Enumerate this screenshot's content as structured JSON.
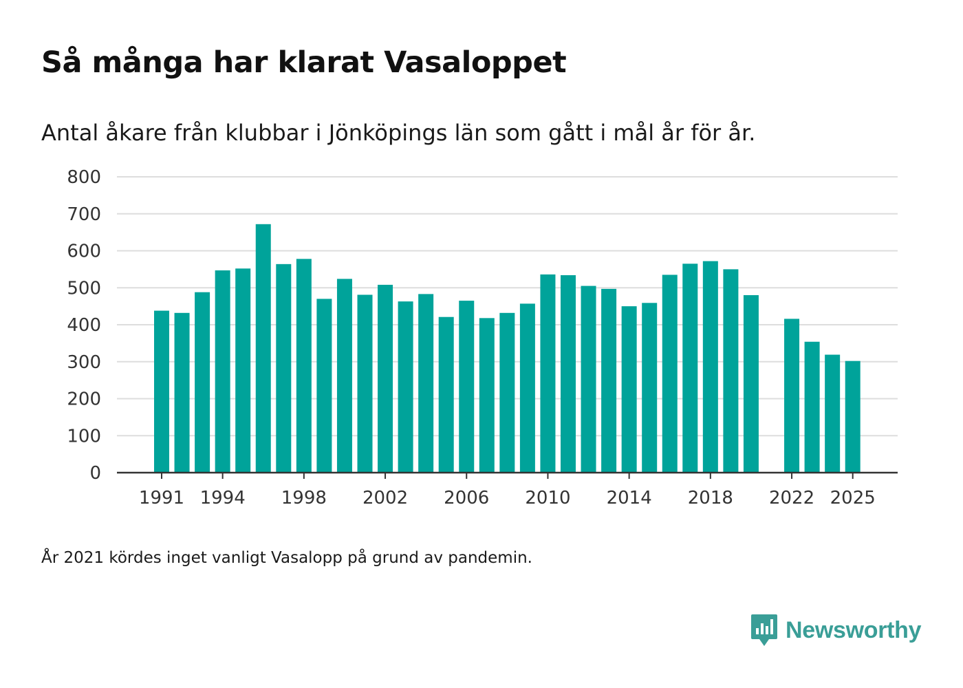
{
  "title": "Så många har klarat Vasaloppet",
  "subtitle": "Antal åkare från klubbar i Jönköpings län som gått i mål år för år.",
  "note": "År 2021 kördes inget vanligt Vasalopp på grund av pandemin.",
  "brand": {
    "name": "Newsworthy",
    "color": "#3a9e97",
    "icon": "newsworthy-logo-icon"
  },
  "colors": {
    "bar": "#00a39a",
    "grid": "#dddddd",
    "axis": "#333333"
  },
  "chart_data": {
    "type": "bar",
    "title": "Så många har klarat Vasaloppet",
    "xlabel": "",
    "ylabel": "",
    "ylim": [
      0,
      800
    ],
    "yticks": [
      0,
      100,
      200,
      300,
      400,
      500,
      600,
      700,
      800
    ],
    "xtick_labels": [
      "1991",
      "1994",
      "1998",
      "2002",
      "2006",
      "2010",
      "2014",
      "2018",
      "2022",
      "2025"
    ],
    "categories": [
      1991,
      1992,
      1993,
      1994,
      1995,
      1996,
      1997,
      1998,
      1999,
      2000,
      2001,
      2002,
      2003,
      2004,
      2005,
      2006,
      2007,
      2008,
      2009,
      2010,
      2011,
      2012,
      2013,
      2014,
      2015,
      2016,
      2017,
      2018,
      2019,
      2020,
      2021,
      2022,
      2023,
      2024,
      2025
    ],
    "values": [
      438,
      432,
      488,
      547,
      552,
      672,
      564,
      578,
      470,
      524,
      481,
      508,
      463,
      483,
      421,
      465,
      418,
      432,
      457,
      536,
      534,
      505,
      497,
      450,
      459,
      535,
      565,
      572,
      550,
      480,
      null,
      416,
      354,
      319,
      302
    ],
    "grid": true
  }
}
